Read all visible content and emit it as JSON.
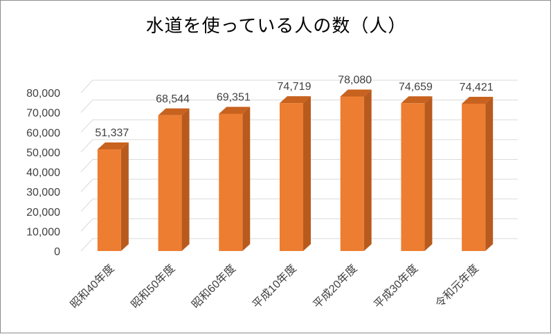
{
  "colors": {
    "bar_front": "#ED7D31",
    "bar_side": "#B85A1E",
    "bar_top": "#C8621F",
    "grid": "#D9D9D9",
    "text": "#404040",
    "frame": "#8C8C8C"
  },
  "chart_data": {
    "type": "bar",
    "title": "水道を使っている人の数（人）",
    "xlabel": "",
    "ylabel": "",
    "categories": [
      "昭和40年度",
      "昭和50年度",
      "昭和60年度",
      "平成10年度",
      "平成20年度",
      "平成30年度",
      "令和元年度"
    ],
    "values": [
      51337,
      68544,
      69351,
      74719,
      78080,
      74659,
      74421
    ],
    "value_labels": [
      "51,337",
      "68,544",
      "69,351",
      "74,719",
      "78,080",
      "74,659",
      "74,421"
    ],
    "ylim": [
      0,
      80000
    ],
    "y_ticks": [
      0,
      10000,
      20000,
      30000,
      40000,
      50000,
      60000,
      70000,
      80000
    ],
    "y_tick_labels": [
      "0",
      "10,000",
      "20,000",
      "30,000",
      "40,000",
      "50,000",
      "60,000",
      "70,000",
      "80,000"
    ],
    "grid": true,
    "legend": "none",
    "style": "3d-column"
  }
}
